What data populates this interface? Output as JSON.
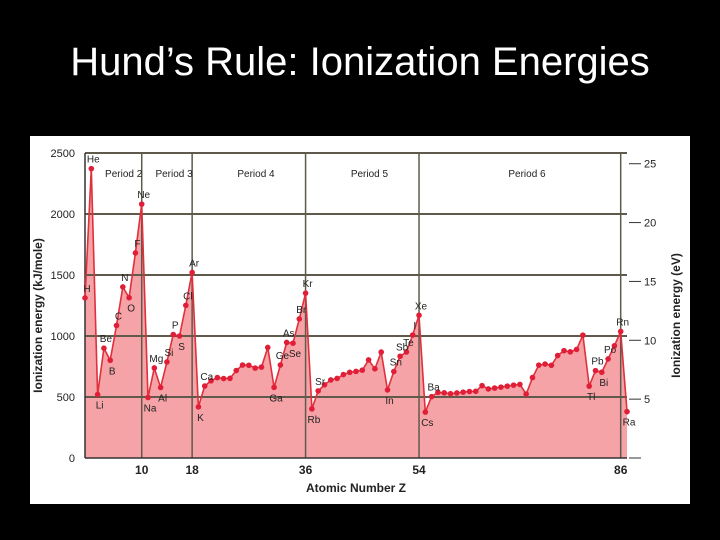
{
  "slide": {
    "title": "Hund’s Rule: Ionization Energies"
  },
  "chart_data": {
    "type": "area",
    "xlabel": "Atomic Number Z",
    "ylabel": "Ionization energy (kJ/mole)",
    "y2label": "Ionization energy (eV)",
    "ylim": [
      0,
      2500
    ],
    "y_ticks": [
      0,
      500,
      1000,
      1500,
      2000,
      2500
    ],
    "y2_ticks": [
      5,
      10,
      15,
      20,
      25
    ],
    "x_ticks": [
      10,
      18,
      36,
      54,
      86
    ],
    "xlim": [
      1,
      87
    ],
    "period_labels": [
      {
        "text": "Period 2",
        "start": 3,
        "end": 10
      },
      {
        "text": "Period 3",
        "start": 11,
        "end": 18
      },
      {
        "text": "Period 4",
        "start": 19,
        "end": 36
      },
      {
        "text": "Period 5",
        "start": 37,
        "end": 54
      },
      {
        "text": "Period 6",
        "start": 55,
        "end": 86
      }
    ],
    "series": [
      {
        "x": [
          1,
          2,
          3,
          4,
          5,
          6,
          7,
          8,
          9,
          10,
          11,
          12,
          13,
          14,
          15,
          16,
          17,
          18,
          19,
          20,
          21,
          22,
          23,
          24,
          25,
          26,
          27,
          28,
          29,
          30,
          31,
          32,
          33,
          34,
          35,
          36,
          37,
          38,
          39,
          40,
          41,
          42,
          43,
          44,
          45,
          46,
          47,
          48,
          49,
          50,
          51,
          52,
          53,
          54,
          55,
          56,
          57,
          58,
          59,
          60,
          61,
          62,
          63,
          64,
          65,
          66,
          67,
          68,
          69,
          70,
          71,
          72,
          73,
          74,
          75,
          76,
          77,
          78,
          79,
          80,
          81,
          82,
          83,
          84,
          85,
          86,
          87
        ],
        "values": [
          1312,
          2372,
          520,
          900,
          801,
          1086,
          1402,
          1314,
          1681,
          2081,
          496,
          738,
          578,
          787,
          1012,
          1000,
          1251,
          1521,
          419,
          590,
          633,
          659,
          651,
          653,
          717,
          762,
          760,
          737,
          745,
          906,
          579,
          762,
          947,
          941,
          1140,
          1351,
          403,
          550,
          600,
          640,
          652,
          684,
          702,
          710,
          720,
          804,
          731,
          868,
          558,
          709,
          834,
          869,
          1008,
          1170,
          376,
          503,
          538,
          534,
          527,
          533,
          540,
          545,
          547,
          593,
          566,
          573,
          581,
          589,
          597,
          603,
          524,
          659,
          761,
          770,
          760,
          840,
          880,
          870,
          890,
          1007,
          589,
          716,
          703,
          812,
          920,
          1037,
          380
        ]
      }
    ],
    "element_labels": [
      {
        "z": 1,
        "sym": "H"
      },
      {
        "z": 2,
        "sym": "He"
      },
      {
        "z": 3,
        "sym": "Li"
      },
      {
        "z": 4,
        "sym": "Be"
      },
      {
        "z": 5,
        "sym": "B"
      },
      {
        "z": 6,
        "sym": "C"
      },
      {
        "z": 7,
        "sym": "N"
      },
      {
        "z": 8,
        "sym": "O"
      },
      {
        "z": 9,
        "sym": "F"
      },
      {
        "z": 10,
        "sym": "Ne"
      },
      {
        "z": 11,
        "sym": "Na"
      },
      {
        "z": 12,
        "sym": "Mg"
      },
      {
        "z": 13,
        "sym": "Al"
      },
      {
        "z": 14,
        "sym": "Si"
      },
      {
        "z": 15,
        "sym": "P"
      },
      {
        "z": 16,
        "sym": "S"
      },
      {
        "z": 17,
        "sym": "Cl"
      },
      {
        "z": 18,
        "sym": "Ar"
      },
      {
        "z": 19,
        "sym": "K"
      },
      {
        "z": 20,
        "sym": "Ca"
      },
      {
        "z": 31,
        "sym": "Ga"
      },
      {
        "z": 32,
        "sym": "Ge"
      },
      {
        "z": 33,
        "sym": "As"
      },
      {
        "z": 34,
        "sym": "Se"
      },
      {
        "z": 35,
        "sym": "Br"
      },
      {
        "z": 36,
        "sym": "Kr"
      },
      {
        "z": 37,
        "sym": "Rb"
      },
      {
        "z": 38,
        "sym": "Sr"
      },
      {
        "z": 49,
        "sym": "In"
      },
      {
        "z": 50,
        "sym": "Sn"
      },
      {
        "z": 51,
        "sym": "Sb"
      },
      {
        "z": 52,
        "sym": "Te"
      },
      {
        "z": 53,
        "sym": "I"
      },
      {
        "z": 54,
        "sym": "Xe"
      },
      {
        "z": 55,
        "sym": "Cs"
      },
      {
        "z": 56,
        "sym": "Ba"
      },
      {
        "z": 81,
        "sym": "Tl"
      },
      {
        "z": 82,
        "sym": "Pb"
      },
      {
        "z": 83,
        "sym": "Bi"
      },
      {
        "z": 84,
        "sym": "Po"
      },
      {
        "z": 86,
        "sym": "Rn"
      },
      {
        "z": 87,
        "sym": "Ra"
      }
    ],
    "colors": {
      "fill": "#f6a3a7",
      "line": "#e0303c",
      "marker": "#e01e37",
      "grid": "#5f5a4c"
    },
    "grid": true
  }
}
